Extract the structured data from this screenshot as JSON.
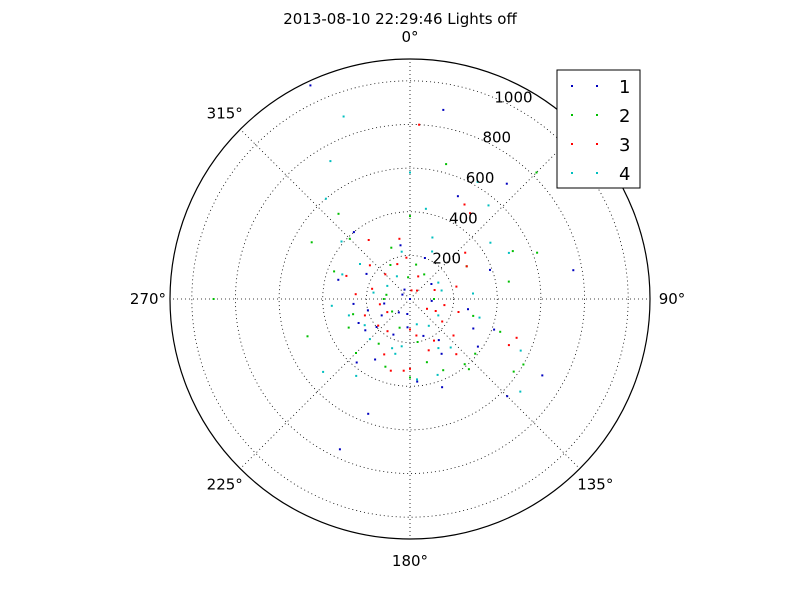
{
  "chart_data": {
    "type": "scatter",
    "projection": "polar",
    "title": "2013-08-10 22:29:46 Lights off",
    "theta_direction": "clockwise",
    "theta_zero": "top",
    "angle_ticks": [
      {
        "deg": 0,
        "label": "0°"
      },
      {
        "deg": 45,
        "label": ""
      },
      {
        "deg": 90,
        "label": "90°"
      },
      {
        "deg": 135,
        "label": "135°"
      },
      {
        "deg": 180,
        "label": "180°"
      },
      {
        "deg": 225,
        "label": "225°"
      },
      {
        "deg": 270,
        "label": "270°"
      },
      {
        "deg": 315,
        "label": "315°"
      }
    ],
    "r_ticks": [
      200,
      400,
      600,
      800,
      1000
    ],
    "r_tick_labels": [
      "200",
      "400",
      "600",
      "800",
      "1000"
    ],
    "rlim": [
      0,
      1100
    ],
    "grid": true,
    "legend_position": "top-right",
    "series": [
      {
        "name": "1",
        "color": "#0000bf",
        "points": [
          [
            0,
            0
          ],
          [
            335,
            1080
          ],
          [
            10,
            880
          ],
          [
            40,
            690
          ],
          [
            25,
            520
          ],
          [
            80,
            760
          ],
          [
            70,
            390
          ],
          [
            115,
            320
          ],
          [
            110,
            410
          ],
          [
            125,
            380
          ],
          [
            145,
            230
          ],
          [
            150,
            290
          ],
          [
            160,
            180
          ],
          [
            175,
            380
          ],
          [
            205,
            180
          ],
          [
            210,
            320
          ],
          [
            220,
            380
          ],
          [
            235,
            250
          ],
          [
            245,
            260
          ],
          [
            255,
            200
          ],
          [
            265,
            260
          ],
          [
            285,
            340
          ],
          [
            300,
            230
          ],
          [
            320,
            400
          ],
          [
            350,
            250
          ],
          [
            20,
            200
          ],
          [
            55,
            120
          ],
          [
            95,
            100
          ],
          [
            200,
            560
          ],
          [
            205,
            760
          ],
          [
            120,
            700
          ],
          [
            135,
            630
          ],
          [
            100,
            270
          ],
          [
            160,
            430
          ],
          [
            190,
            70
          ],
          [
            220,
            80
          ],
          [
            300,
            40
          ],
          [
            330,
            50
          ],
          [
            260,
            120
          ],
          [
            230,
            200
          ],
          [
            185,
            130
          ],
          [
            240,
            150
          ]
        ]
      },
      {
        "name": "2",
        "color": "#00bf00",
        "points": [
          [
            270,
            900
          ],
          [
            15,
            640
          ],
          [
            45,
            820
          ],
          [
            65,
            520
          ],
          [
            70,
            620
          ],
          [
            80,
            460
          ],
          [
            110,
            440
          ],
          [
            120,
            600
          ],
          [
            130,
            390
          ],
          [
            140,
            390
          ],
          [
            155,
            360
          ],
          [
            165,
            300
          ],
          [
            180,
            360
          ],
          [
            200,
            330
          ],
          [
            215,
            250
          ],
          [
            225,
            350
          ],
          [
            245,
            310
          ],
          [
            255,
            270
          ],
          [
            280,
            110
          ],
          [
            290,
            370
          ],
          [
            300,
            520
          ],
          [
            315,
            390
          ],
          [
            320,
            510
          ],
          [
            340,
            250
          ],
          [
            0,
            380
          ],
          [
            10,
            160
          ],
          [
            30,
            130
          ],
          [
            60,
            300
          ],
          [
            90,
            110
          ],
          [
            140,
            420
          ],
          [
            125,
            580
          ],
          [
            105,
            300
          ],
          [
            270,
            120
          ],
          [
            200,
            140
          ],
          [
            235,
            100
          ],
          [
            330,
            180
          ],
          [
            355,
            100
          ],
          [
            170,
            200
          ],
          [
            250,
            500
          ]
        ]
      },
      {
        "name": "3",
        "color": "#ff0000",
        "points": [
          [
            3,
            800
          ],
          [
            30,
            500
          ],
          [
            35,
            480
          ],
          [
            50,
            330
          ],
          [
            60,
            300
          ],
          [
            75,
            220
          ],
          [
            100,
            160
          ],
          [
            105,
            230
          ],
          [
            115,
            130
          ],
          [
            125,
            180
          ],
          [
            130,
            260
          ],
          [
            140,
            330
          ],
          [
            150,
            220
          ],
          [
            170,
            170
          ],
          [
            180,
            140
          ],
          [
            185,
            330
          ],
          [
            195,
            340
          ],
          [
            205,
            280
          ],
          [
            215,
            180
          ],
          [
            230,
            190
          ],
          [
            250,
            220
          ],
          [
            260,
            140
          ],
          [
            275,
            250
          ],
          [
            290,
            310
          ],
          [
            310,
            240
          ],
          [
            325,
            330
          ],
          [
            340,
            170
          ],
          [
            350,
            280
          ],
          [
            20,
            110
          ],
          [
            40,
            50
          ],
          [
            70,
            120
          ],
          [
            120,
            90
          ],
          [
            160,
            250
          ],
          [
            240,
            120
          ],
          [
            285,
            180
          ],
          [
            315,
            160
          ],
          [
            180,
            320
          ],
          [
            355,
            190
          ],
          [
            10,
            40
          ],
          [
            110,
            520
          ],
          [
            115,
            500
          ]
        ]
      },
      {
        "name": "4",
        "color": "#00bfbf",
        "points": [
          [
            0,
            580
          ],
          [
            30,
            620
          ],
          [
            40,
            560
          ],
          [
            55,
            450
          ],
          [
            65,
            500
          ],
          [
            85,
            290
          ],
          [
            105,
            330
          ],
          [
            115,
            560
          ],
          [
            130,
            660
          ],
          [
            140,
            290
          ],
          [
            150,
            260
          ],
          [
            160,
            370
          ],
          [
            175,
            370
          ],
          [
            195,
            260
          ],
          [
            215,
            430
          ],
          [
            225,
            260
          ],
          [
            240,
            240
          ],
          [
            255,
            290
          ],
          [
            265,
            360
          ],
          [
            290,
            330
          ],
          [
            305,
            280
          ],
          [
            310,
            410
          ],
          [
            320,
            600
          ],
          [
            330,
            730
          ],
          [
            340,
            890
          ],
          [
            350,
            220
          ],
          [
            10,
            420
          ],
          [
            25,
            240
          ],
          [
            75,
            150
          ],
          [
            120,
            150
          ],
          [
            145,
            150
          ],
          [
            190,
            220
          ],
          [
            230,
            520
          ],
          [
            280,
            170
          ],
          [
            300,
            120
          ],
          [
            330,
            120
          ],
          [
            20,
            300
          ],
          [
            60,
            150
          ],
          [
            165,
            120
          ],
          [
            200,
            240
          ]
        ]
      }
    ]
  }
}
